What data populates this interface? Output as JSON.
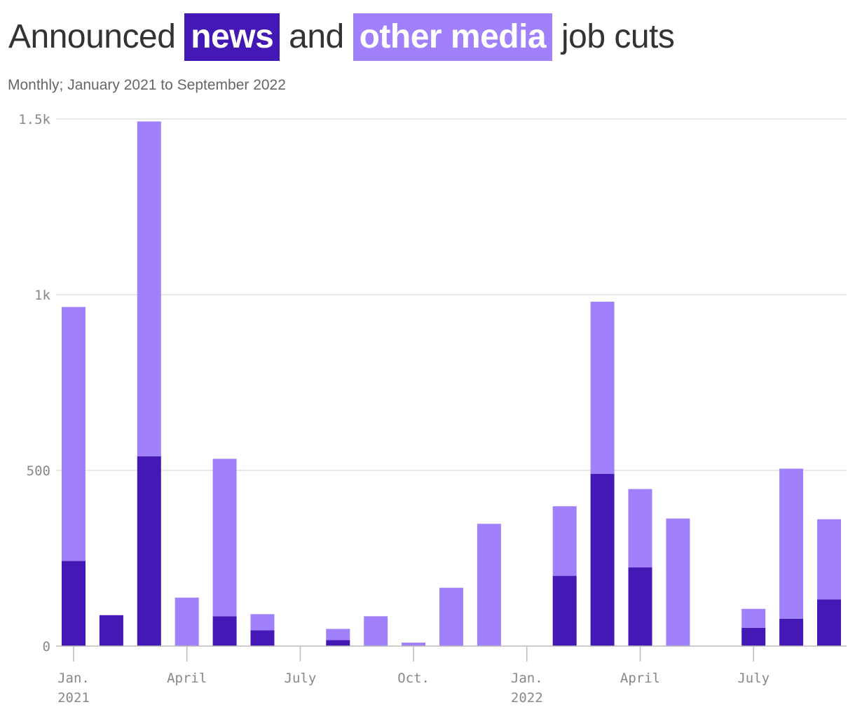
{
  "title": {
    "part1": "Announced",
    "news": "news",
    "part2": "and",
    "other": "other media",
    "part3": "job cuts"
  },
  "subtitle": "Monthly; January 2021 to September 2022",
  "colors": {
    "news": "#4318b5",
    "other": "#a180fc",
    "grid": "#e2e2e2",
    "axis": "#bbbbbb"
  },
  "chart_data": {
    "type": "bar",
    "stacked": true,
    "categories": [
      "2021-01",
      "2021-02",
      "2021-03",
      "2021-04",
      "2021-05",
      "2021-06",
      "2021-07",
      "2021-08",
      "2021-09",
      "2021-10",
      "2021-11",
      "2021-12",
      "2022-01",
      "2022-02",
      "2022-03",
      "2022-04",
      "2022-05",
      "2022-06",
      "2022-07",
      "2022-08",
      "2022-09"
    ],
    "series": [
      {
        "name": "news",
        "values": [
          242,
          88,
          540,
          0,
          85,
          45,
          0,
          17,
          0,
          0,
          0,
          0,
          0,
          200,
          490,
          224,
          0,
          0,
          52,
          78,
          133
        ]
      },
      {
        "name": "other media",
        "values": [
          723,
          0,
          953,
          138,
          448,
          46,
          0,
          32,
          85,
          10,
          166,
          348,
          0,
          198,
          490,
          223,
          363,
          0,
          54,
          427,
          228
        ]
      }
    ],
    "ylim": [
      0,
      1500
    ],
    "yticks": [
      {
        "value": 0,
        "label": "0"
      },
      {
        "value": 500,
        "label": "500"
      },
      {
        "value": 1000,
        "label": "1k"
      },
      {
        "value": 1500,
        "label": "1.5k"
      }
    ],
    "xticks": [
      {
        "index": 0,
        "lines": [
          "Jan.",
          "2021"
        ]
      },
      {
        "index": 3,
        "lines": [
          "April"
        ]
      },
      {
        "index": 6,
        "lines": [
          "July"
        ]
      },
      {
        "index": 9,
        "lines": [
          "Oct."
        ]
      },
      {
        "index": 12,
        "lines": [
          "Jan.",
          "2022"
        ]
      },
      {
        "index": 15,
        "lines": [
          "April"
        ]
      },
      {
        "index": 18,
        "lines": [
          "July"
        ]
      }
    ],
    "grid": true,
    "legend": "inline in title"
  }
}
